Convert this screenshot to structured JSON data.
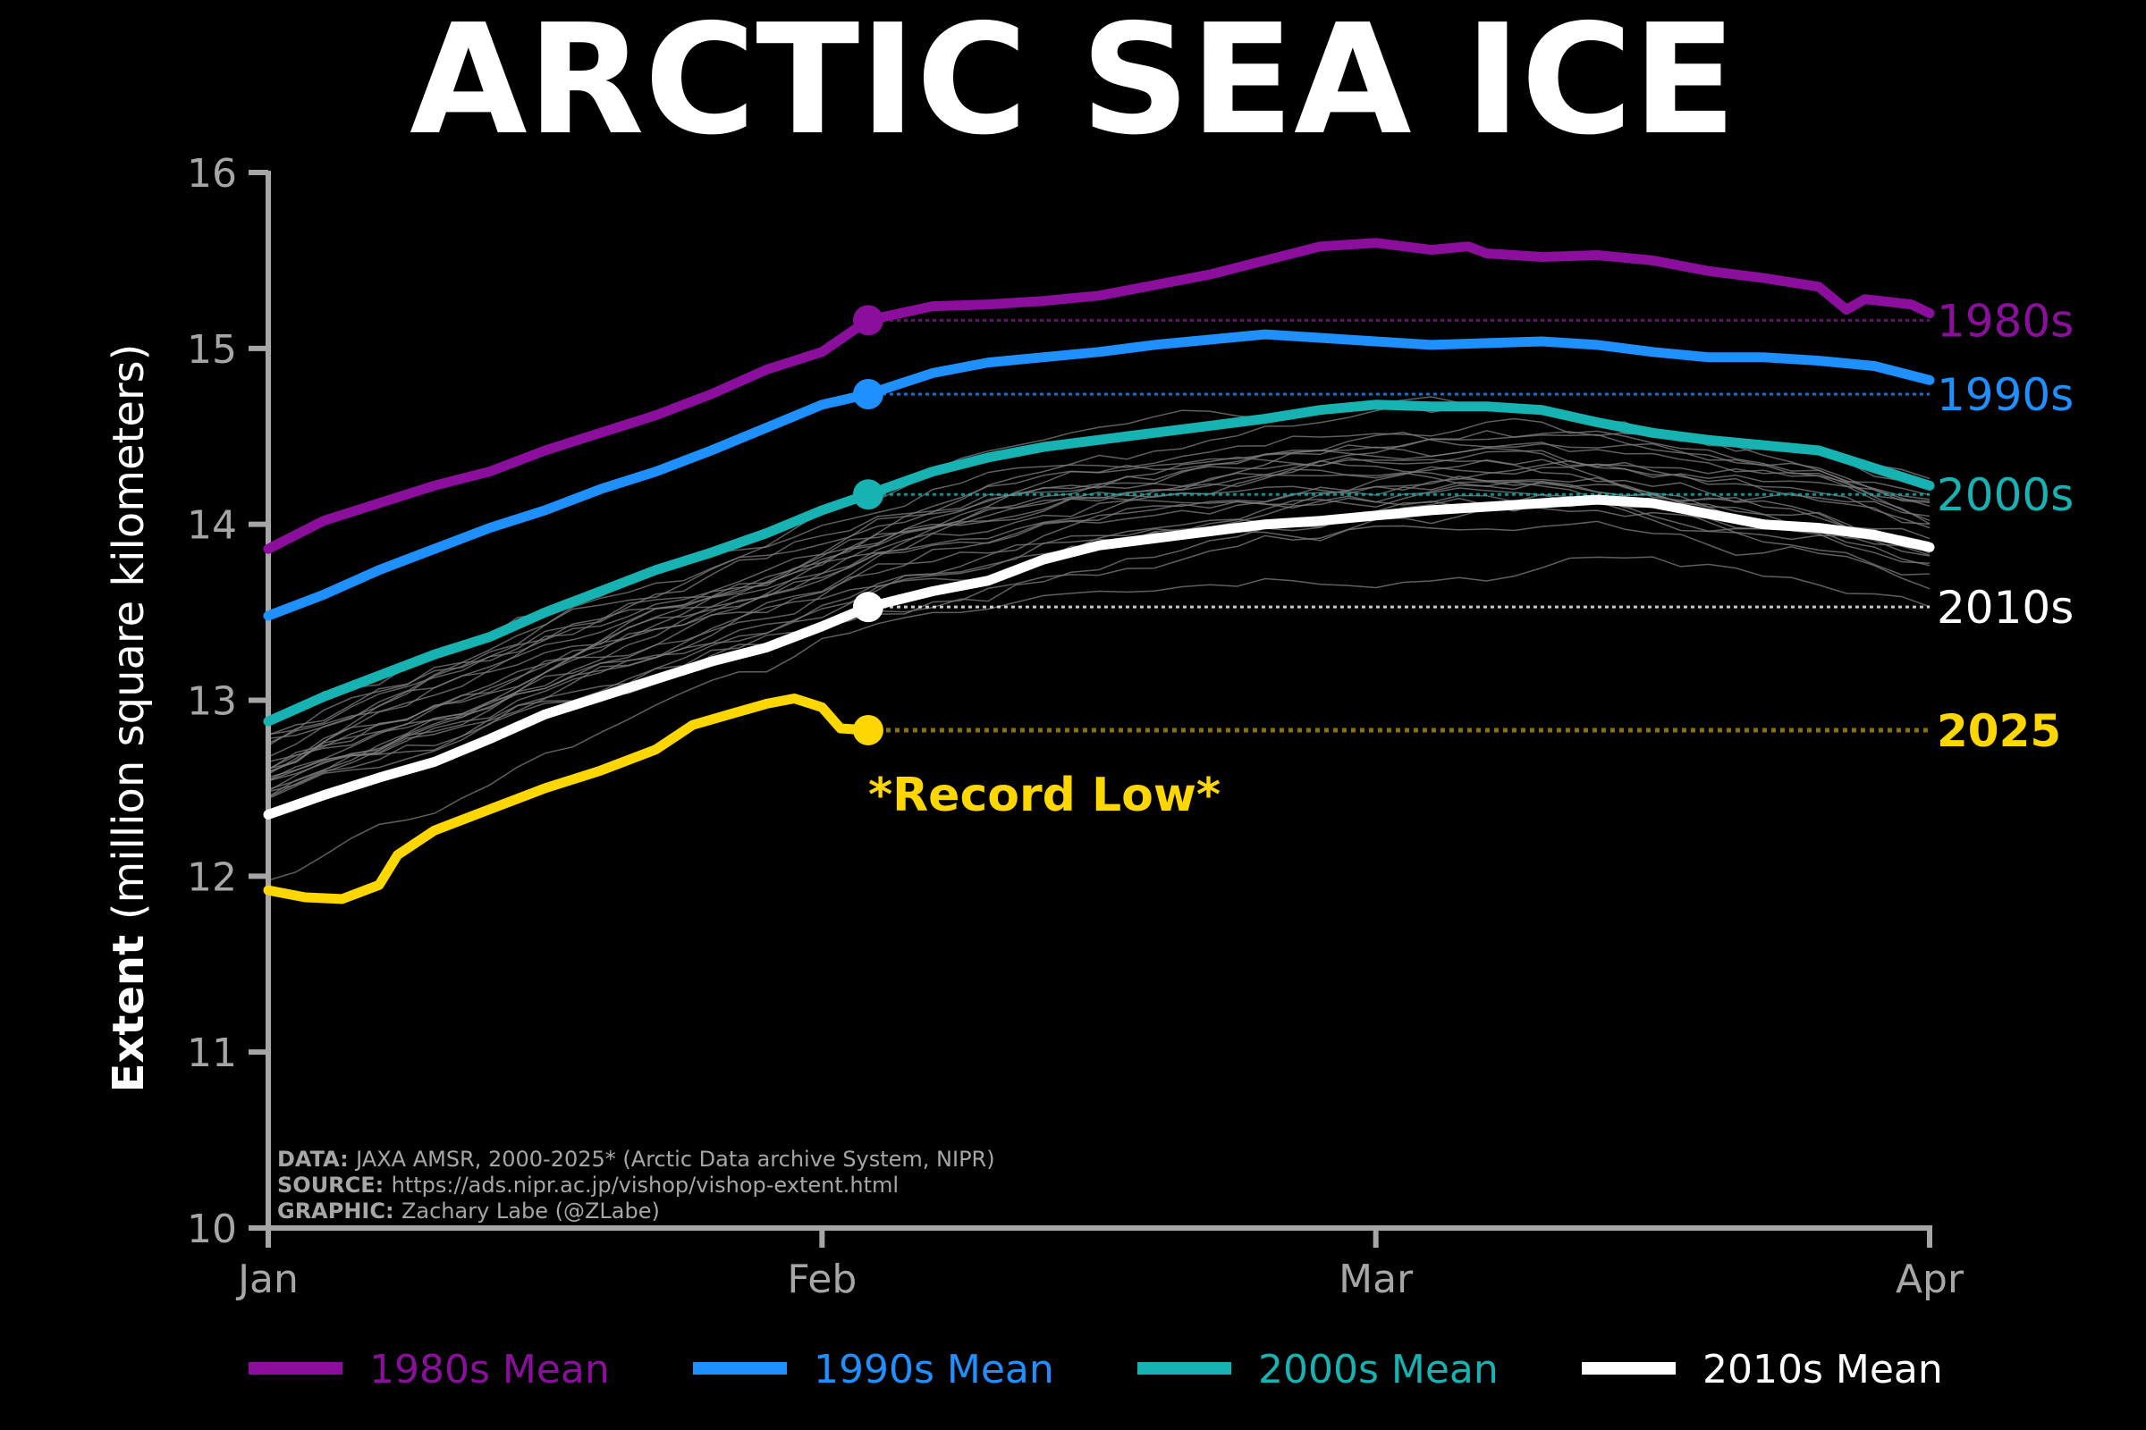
{
  "chart_data": {
    "type": "line",
    "title": "ARCTIC SEA ICE",
    "ylabel_bold": "Extent",
    "ylabel_rest": "(million square kilometers)",
    "ylim": [
      10,
      16
    ],
    "yticks": [
      "10",
      "11",
      "12",
      "13",
      "14",
      "15",
      "16"
    ],
    "xlim": [
      1,
      91
    ],
    "xticks": [
      {
        "label": "Jan",
        "day": 1
      },
      {
        "label": "Feb",
        "day": 31
      },
      {
        "label": "Mar",
        "day": 61
      },
      {
        "label": "Apr",
        "day": 91
      }
    ],
    "background_color": "#000000",
    "series": [
      {
        "name": "1980s Mean",
        "label": "1980s",
        "color": "#8b0f9c",
        "marker_day": 33.5,
        "marker_value": 15.16,
        "points": [
          [
            1,
            13.86
          ],
          [
            4,
            14.02
          ],
          [
            7,
            14.12
          ],
          [
            10,
            14.22
          ],
          [
            13,
            14.3
          ],
          [
            16,
            14.42
          ],
          [
            19,
            14.52
          ],
          [
            22,
            14.62
          ],
          [
            25,
            14.74
          ],
          [
            28,
            14.88
          ],
          [
            31,
            14.98
          ],
          [
            33.5,
            15.16
          ],
          [
            37,
            15.24
          ],
          [
            40,
            15.25
          ],
          [
            43,
            15.27
          ],
          [
            46,
            15.3
          ],
          [
            49,
            15.36
          ],
          [
            52,
            15.42
          ],
          [
            55,
            15.5
          ],
          [
            58,
            15.58
          ],
          [
            61,
            15.6
          ],
          [
            64,
            15.56
          ],
          [
            66,
            15.58
          ],
          [
            67,
            15.54
          ],
          [
            70,
            15.52
          ],
          [
            73,
            15.53
          ],
          [
            76,
            15.5
          ],
          [
            79,
            15.44
          ],
          [
            82,
            15.4
          ],
          [
            85,
            15.35
          ],
          [
            86.5,
            15.22
          ],
          [
            87.5,
            15.28
          ],
          [
            90,
            15.25
          ],
          [
            91,
            15.2
          ]
        ]
      },
      {
        "name": "1990s Mean",
        "label": "1990s",
        "color": "#1e90ff",
        "marker_day": 33.5,
        "marker_value": 14.74,
        "points": [
          [
            1,
            13.48
          ],
          [
            4,
            13.6
          ],
          [
            7,
            13.74
          ],
          [
            10,
            13.86
          ],
          [
            13,
            13.98
          ],
          [
            16,
            14.08
          ],
          [
            19,
            14.2
          ],
          [
            22,
            14.3
          ],
          [
            25,
            14.42
          ],
          [
            28,
            14.55
          ],
          [
            31,
            14.68
          ],
          [
            33.5,
            14.74
          ],
          [
            37,
            14.86
          ],
          [
            40,
            14.92
          ],
          [
            43,
            14.95
          ],
          [
            46,
            14.98
          ],
          [
            49,
            15.02
          ],
          [
            52,
            15.05
          ],
          [
            55,
            15.08
          ],
          [
            58,
            15.06
          ],
          [
            61,
            15.04
          ],
          [
            64,
            15.02
          ],
          [
            67,
            15.03
          ],
          [
            70,
            15.04
          ],
          [
            73,
            15.02
          ],
          [
            76,
            14.98
          ],
          [
            79,
            14.95
          ],
          [
            82,
            14.95
          ],
          [
            85,
            14.93
          ],
          [
            88,
            14.9
          ],
          [
            91,
            14.82
          ]
        ]
      },
      {
        "name": "2000s Mean",
        "label": "2000s",
        "color": "#17b3b3",
        "marker_day": 33.5,
        "marker_value": 14.17,
        "points": [
          [
            1,
            12.88
          ],
          [
            4,
            13.02
          ],
          [
            7,
            13.14
          ],
          [
            10,
            13.26
          ],
          [
            13,
            13.36
          ],
          [
            16,
            13.5
          ],
          [
            19,
            13.62
          ],
          [
            22,
            13.74
          ],
          [
            25,
            13.84
          ],
          [
            28,
            13.95
          ],
          [
            31,
            14.08
          ],
          [
            33.5,
            14.17
          ],
          [
            37,
            14.3
          ],
          [
            40,
            14.38
          ],
          [
            43,
            14.44
          ],
          [
            46,
            14.48
          ],
          [
            49,
            14.52
          ],
          [
            52,
            14.56
          ],
          [
            55,
            14.6
          ],
          [
            58,
            14.65
          ],
          [
            61,
            14.68
          ],
          [
            64,
            14.67
          ],
          [
            67,
            14.67
          ],
          [
            70,
            14.65
          ],
          [
            73,
            14.58
          ],
          [
            76,
            14.52
          ],
          [
            79,
            14.48
          ],
          [
            82,
            14.45
          ],
          [
            85,
            14.42
          ],
          [
            88,
            14.32
          ],
          [
            91,
            14.22
          ]
        ]
      },
      {
        "name": "2010s Mean",
        "label": "2010s",
        "color": "#ffffff",
        "marker_day": 33.5,
        "marker_value": 13.53,
        "points": [
          [
            1,
            12.35
          ],
          [
            4,
            12.46
          ],
          [
            7,
            12.56
          ],
          [
            10,
            12.65
          ],
          [
            13,
            12.78
          ],
          [
            16,
            12.92
          ],
          [
            19,
            13.02
          ],
          [
            22,
            13.12
          ],
          [
            25,
            13.22
          ],
          [
            28,
            13.3
          ],
          [
            31,
            13.42
          ],
          [
            33.5,
            13.53
          ],
          [
            37,
            13.62
          ],
          [
            40,
            13.68
          ],
          [
            43,
            13.8
          ],
          [
            46,
            13.88
          ],
          [
            49,
            13.92
          ],
          [
            52,
            13.96
          ],
          [
            55,
            14.0
          ],
          [
            58,
            14.02
          ],
          [
            61,
            14.05
          ],
          [
            64,
            14.08
          ],
          [
            67,
            14.1
          ],
          [
            70,
            14.12
          ],
          [
            73,
            14.14
          ],
          [
            76,
            14.12
          ],
          [
            79,
            14.06
          ],
          [
            82,
            14.0
          ],
          [
            85,
            13.98
          ],
          [
            88,
            13.94
          ],
          [
            91,
            13.87
          ]
        ]
      },
      {
        "name": "2025",
        "label": "2025",
        "color": "#ffd700",
        "marker_day": 33.5,
        "marker_value": 12.83,
        "points": [
          [
            1,
            11.92
          ],
          [
            3,
            11.88
          ],
          [
            5,
            11.87
          ],
          [
            7,
            11.95
          ],
          [
            8,
            12.12
          ],
          [
            10,
            12.26
          ],
          [
            13,
            12.38
          ],
          [
            16,
            12.5
          ],
          [
            19,
            12.6
          ],
          [
            22,
            12.72
          ],
          [
            24,
            12.86
          ],
          [
            26,
            12.92
          ],
          [
            28,
            12.98
          ],
          [
            29.5,
            13.01
          ],
          [
            31,
            12.96
          ],
          [
            32,
            12.84
          ],
          [
            33.5,
            12.83
          ]
        ]
      }
    ],
    "annotation": "*Record Low*",
    "legend_position": "bottom",
    "legend": [
      {
        "label": "1980s Mean",
        "color": "#8b0f9c"
      },
      {
        "label": "1990s Mean",
        "color": "#1e90ff"
      },
      {
        "label": "2000s Mean",
        "color": "#17b3b3"
      },
      {
        "label": "2010s Mean",
        "color": "#ffffff"
      }
    ],
    "credits": [
      {
        "label": "DATA:",
        "text": "JAXA AMSR, 2000-2025* (Arctic Data archive System, NIPR)"
      },
      {
        "label": "SOURCE:",
        "text": "https://ads.nipr.ac.jp/vishop/vishop-extent.html"
      },
      {
        "label": "GRAPHIC:",
        "text": "Zachary Labe (@ZLabe)"
      }
    ]
  }
}
